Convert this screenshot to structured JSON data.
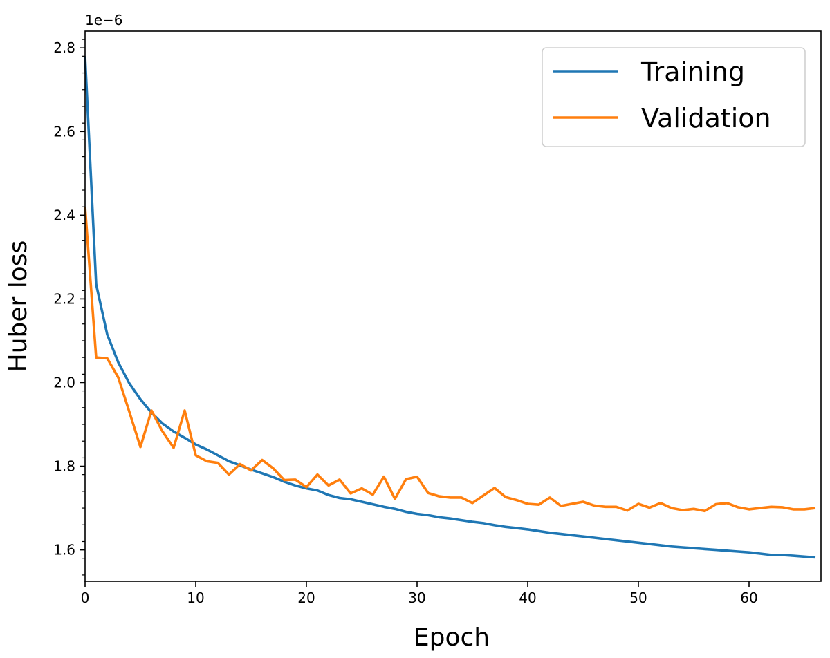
{
  "chart_data": {
    "type": "line",
    "xlabel": "Epoch",
    "ylabel": "Huber loss",
    "offset_text": "1e−6",
    "xlim": [
      0,
      66.5
    ],
    "ylim": [
      1.525,
      2.84
    ],
    "x_ticks": [
      0,
      10,
      20,
      30,
      40,
      50,
      60
    ],
    "x_tick_labels": [
      "0",
      "10",
      "20",
      "30",
      "40",
      "50",
      "60"
    ],
    "y_ticks": [
      1.6,
      1.8,
      2.0,
      2.2,
      2.4,
      2.6,
      2.8
    ],
    "y_tick_labels": [
      "1.6",
      "1.8",
      "2.0",
      "2.2",
      "2.4",
      "2.6",
      "2.8"
    ],
    "grid": false,
    "legend_position": "upper-right",
    "series": [
      {
        "name": "Training",
        "color": "#1f77b4",
        "x": [
          0,
          1,
          2,
          3,
          4,
          5,
          6,
          7,
          8,
          9,
          10,
          11,
          12,
          13,
          14,
          15,
          16,
          17,
          18,
          19,
          20,
          21,
          22,
          23,
          24,
          25,
          26,
          27,
          28,
          29,
          30,
          31,
          32,
          33,
          34,
          35,
          36,
          37,
          38,
          39,
          40,
          41,
          42,
          43,
          44,
          45,
          46,
          47,
          48,
          49,
          50,
          51,
          52,
          53,
          54,
          55,
          56,
          57,
          58,
          59,
          60,
          61,
          62,
          63,
          64,
          65,
          66
        ],
        "values": [
          2.78,
          2.235,
          2.115,
          2.048,
          1.998,
          1.96,
          1.928,
          1.902,
          1.883,
          1.868,
          1.852,
          1.84,
          1.826,
          1.812,
          1.802,
          1.792,
          1.783,
          1.774,
          1.763,
          1.754,
          1.747,
          1.742,
          1.731,
          1.724,
          1.721,
          1.715,
          1.709,
          1.703,
          1.698,
          1.691,
          1.686,
          1.683,
          1.678,
          1.675,
          1.671,
          1.667,
          1.664,
          1.659,
          1.655,
          1.652,
          1.649,
          1.645,
          1.641,
          1.638,
          1.635,
          1.632,
          1.629,
          1.626,
          1.623,
          1.62,
          1.617,
          1.614,
          1.611,
          1.608,
          1.606,
          1.604,
          1.602,
          1.6,
          1.598,
          1.596,
          1.594,
          1.591,
          1.588,
          1.588,
          1.586,
          1.584,
          1.582
        ]
      },
      {
        "name": "Validation",
        "color": "#ff7f0e",
        "x": [
          0,
          1,
          2,
          3,
          4,
          5,
          6,
          7,
          8,
          9,
          10,
          11,
          12,
          13,
          14,
          15,
          16,
          17,
          18,
          19,
          20,
          21,
          22,
          23,
          24,
          25,
          26,
          27,
          28,
          29,
          30,
          31,
          32,
          33,
          34,
          35,
          36,
          37,
          38,
          39,
          40,
          41,
          42,
          43,
          44,
          45,
          46,
          47,
          48,
          49,
          50,
          51,
          52,
          53,
          54,
          55,
          56,
          57,
          58,
          59,
          60,
          61,
          62,
          63,
          64,
          65,
          66
        ],
        "values": [
          2.42,
          2.06,
          2.058,
          2.012,
          1.93,
          1.846,
          1.933,
          1.883,
          1.844,
          1.933,
          1.826,
          1.812,
          1.808,
          1.78,
          1.805,
          1.79,
          1.815,
          1.795,
          1.767,
          1.768,
          1.75,
          1.78,
          1.754,
          1.768,
          1.735,
          1.747,
          1.732,
          1.775,
          1.722,
          1.769,
          1.775,
          1.736,
          1.728,
          1.725,
          1.725,
          1.712,
          1.73,
          1.748,
          1.726,
          1.719,
          1.71,
          1.708,
          1.725,
          1.705,
          1.71,
          1.715,
          1.706,
          1.703,
          1.703,
          1.694,
          1.71,
          1.701,
          1.712,
          1.7,
          1.695,
          1.698,
          1.693,
          1.709,
          1.712,
          1.702,
          1.697,
          1.7,
          1.703,
          1.702,
          1.697,
          1.697,
          1.7
        ]
      }
    ]
  }
}
